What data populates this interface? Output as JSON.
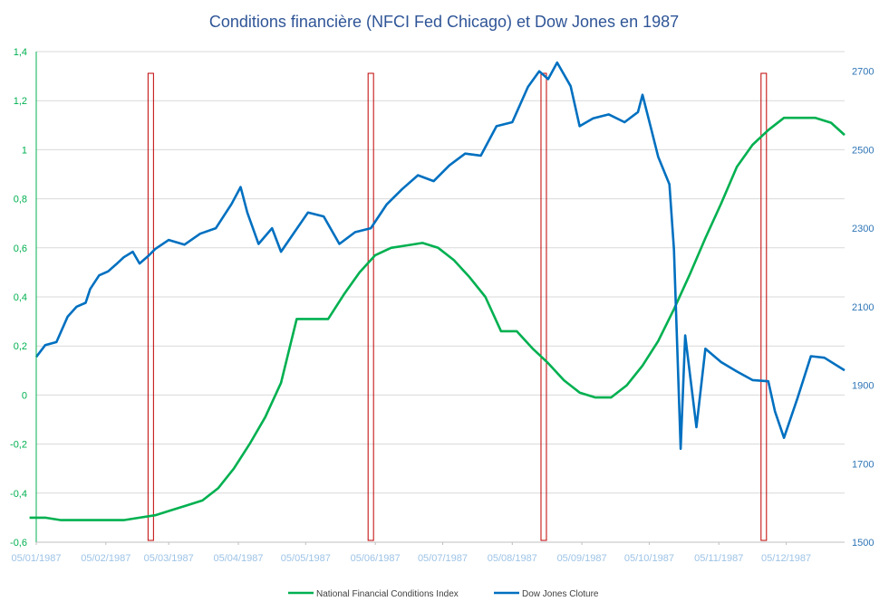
{
  "chart_data": {
    "type": "line",
    "title": "Conditions financière (NFCI Fed Chicago) et Dow Jones en 1987",
    "x_tick_labels": [
      "05/01/1987",
      "05/02/1987",
      "05/03/1987",
      "05/04/1987",
      "05/05/1987",
      "05/06/1987",
      "05/07/1987",
      "05/08/1987",
      "05/09/1987",
      "05/10/1987",
      "05/11/1987",
      "05/12/1987"
    ],
    "x_range": [
      "05/01/1987",
      "31/12/1987"
    ],
    "y_left": {
      "ticks": [
        "-0,6",
        "-0,4",
        "-0,2",
        "0",
        "0,2",
        "0,4",
        "0,6",
        "0,8",
        "1",
        "1,2",
        "1,4"
      ],
      "lim": [
        -0.6,
        1.4
      ]
    },
    "y_right": {
      "ticks": [
        "1500",
        "1700",
        "1900",
        "2100",
        "2300",
        "2500",
        "2700"
      ],
      "lim": [
        1500,
        2750
      ]
    },
    "grid": "horizontal",
    "legend_position": "bottom",
    "series": [
      {
        "name": "National Financial Conditions Index",
        "axis": "left",
        "color": "#00B050",
        "points": [
          [
            "1987-01-02",
            -0.5
          ],
          [
            "1987-01-09",
            -0.5
          ],
          [
            "1987-01-16",
            -0.51
          ],
          [
            "1987-01-23",
            -0.51
          ],
          [
            "1987-01-30",
            -0.51
          ],
          [
            "1987-02-06",
            -0.51
          ],
          [
            "1987-02-13",
            -0.51
          ],
          [
            "1987-02-20",
            -0.5
          ],
          [
            "1987-02-27",
            -0.49
          ],
          [
            "1987-03-06",
            -0.47
          ],
          [
            "1987-03-13",
            -0.45
          ],
          [
            "1987-03-20",
            -0.43
          ],
          [
            "1987-03-27",
            -0.38
          ],
          [
            "1987-04-03",
            -0.3
          ],
          [
            "1987-04-10",
            -0.2
          ],
          [
            "1987-04-17",
            -0.09
          ],
          [
            "1987-04-24",
            0.05
          ],
          [
            "1987-05-01",
            0.31
          ],
          [
            "1987-05-08",
            0.31
          ],
          [
            "1987-05-15",
            0.31
          ],
          [
            "1987-05-22",
            0.41
          ],
          [
            "1987-05-29",
            0.5
          ],
          [
            "1987-06-05",
            0.57
          ],
          [
            "1987-06-12",
            0.6
          ],
          [
            "1987-06-19",
            0.61
          ],
          [
            "1987-06-26",
            0.62
          ],
          [
            "1987-07-03",
            0.6
          ],
          [
            "1987-07-10",
            0.55
          ],
          [
            "1987-07-17",
            0.48
          ],
          [
            "1987-07-24",
            0.4
          ],
          [
            "1987-07-31",
            0.26
          ],
          [
            "1987-08-07",
            0.26
          ],
          [
            "1987-08-14",
            0.19
          ],
          [
            "1987-08-21",
            0.13
          ],
          [
            "1987-08-28",
            0.06
          ],
          [
            "1987-09-04",
            0.01
          ],
          [
            "1987-09-11",
            -0.01
          ],
          [
            "1987-09-18",
            -0.01
          ],
          [
            "1987-09-25",
            0.04
          ],
          [
            "1987-10-02",
            0.12
          ],
          [
            "1987-10-09",
            0.22
          ],
          [
            "1987-10-16",
            0.35
          ],
          [
            "1987-10-23",
            0.49
          ],
          [
            "1987-10-30",
            0.64
          ],
          [
            "1987-11-06",
            0.78
          ],
          [
            "1987-11-13",
            0.93
          ],
          [
            "1987-11-20",
            1.02
          ],
          [
            "1987-11-27",
            1.08
          ],
          [
            "1987-12-04",
            1.13
          ],
          [
            "1987-12-11",
            1.13
          ],
          [
            "1987-12-18",
            1.13
          ],
          [
            "1987-12-25",
            1.11
          ],
          [
            "1987-12-31",
            1.06
          ]
        ]
      },
      {
        "name": "Dow Jones Cloture",
        "axis": "right",
        "color": "#0070C0",
        "points": [
          [
            "1987-01-05",
            1972
          ],
          [
            "1987-01-09",
            2002
          ],
          [
            "1987-01-14",
            2010
          ],
          [
            "1987-01-19",
            2075
          ],
          [
            "1987-01-23",
            2100
          ],
          [
            "1987-01-27",
            2110
          ],
          [
            "1987-01-29",
            2145
          ],
          [
            "1987-02-02",
            2180
          ],
          [
            "1987-02-06",
            2190
          ],
          [
            "1987-02-10",
            2210
          ],
          [
            "1987-02-13",
            2226
          ],
          [
            "1987-02-17",
            2240
          ],
          [
            "1987-02-20",
            2210
          ],
          [
            "1987-02-24",
            2230
          ],
          [
            "1987-02-27",
            2247
          ],
          [
            "1987-03-05",
            2270
          ],
          [
            "1987-03-12",
            2258
          ],
          [
            "1987-03-19",
            2286
          ],
          [
            "1987-03-26",
            2300
          ],
          [
            "1987-04-02",
            2362
          ],
          [
            "1987-04-06",
            2405
          ],
          [
            "1987-04-09",
            2340
          ],
          [
            "1987-04-14",
            2260
          ],
          [
            "1987-04-20",
            2300
          ],
          [
            "1987-04-24",
            2240
          ],
          [
            "1987-04-30",
            2290
          ],
          [
            "1987-05-06",
            2340
          ],
          [
            "1987-05-13",
            2330
          ],
          [
            "1987-05-20",
            2260
          ],
          [
            "1987-05-27",
            2290
          ],
          [
            "1987-06-03",
            2300
          ],
          [
            "1987-06-10",
            2360
          ],
          [
            "1987-06-17",
            2400
          ],
          [
            "1987-06-24",
            2435
          ],
          [
            "1987-07-01",
            2420
          ],
          [
            "1987-07-08",
            2460
          ],
          [
            "1987-07-15",
            2490
          ],
          [
            "1987-07-22",
            2485
          ],
          [
            "1987-07-29",
            2560
          ],
          [
            "1987-08-05",
            2570
          ],
          [
            "1987-08-12",
            2660
          ],
          [
            "1987-08-17",
            2700
          ],
          [
            "1987-08-21",
            2680
          ],
          [
            "1987-08-25",
            2722
          ],
          [
            "1987-08-31",
            2662
          ],
          [
            "1987-09-04",
            2560
          ],
          [
            "1987-09-10",
            2580
          ],
          [
            "1987-09-17",
            2590
          ],
          [
            "1987-09-24",
            2570
          ],
          [
            "1987-09-30",
            2596
          ],
          [
            "1987-10-02",
            2640
          ],
          [
            "1987-10-06",
            2550
          ],
          [
            "1987-10-09",
            2482
          ],
          [
            "1987-10-14",
            2412
          ],
          [
            "1987-10-16",
            2246
          ],
          [
            "1987-10-19",
            1738
          ],
          [
            "1987-10-21",
            2027
          ],
          [
            "1987-10-26",
            1793
          ],
          [
            "1987-10-30",
            1993
          ],
          [
            "1987-11-06",
            1959
          ],
          [
            "1987-11-13",
            1935
          ],
          [
            "1987-11-20",
            1913
          ],
          [
            "1987-11-27",
            1910
          ],
          [
            "1987-11-30",
            1833
          ],
          [
            "1987-12-04",
            1766
          ],
          [
            "1987-12-10",
            1867
          ],
          [
            "1987-12-16",
            1974
          ],
          [
            "1987-12-22",
            1970
          ],
          [
            "1987-12-31",
            1938
          ]
        ]
      }
    ]
  },
  "colors": {
    "title": "#2F5597",
    "left_axis": "#00B050",
    "right_axis": "#2E75B6",
    "x_axis_labels": "#9DC3E6",
    "grid": "#D9D9D9",
    "highlight_box": "#C00000"
  },
  "highlights": [
    {
      "date": "1987-02-25"
    },
    {
      "date": "1987-06-03"
    },
    {
      "date": "1987-08-19"
    },
    {
      "date": "1987-11-25"
    }
  ],
  "legend": [
    {
      "label": "National Financial Conditions Index",
      "color": "#00B050"
    },
    {
      "label": "Dow Jones Cloture",
      "color": "#0070C0"
    }
  ]
}
